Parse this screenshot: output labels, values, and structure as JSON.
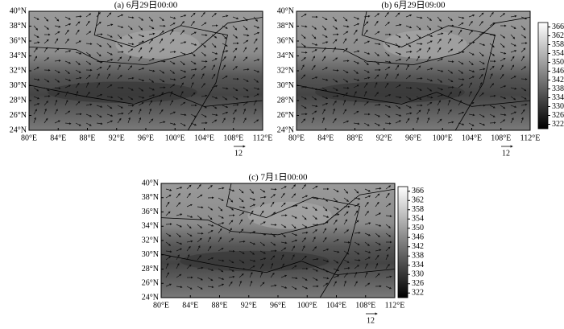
{
  "panels": [
    {
      "title": "(a) 6月29日00:00",
      "xlim": [
        80,
        112
      ],
      "ylim": [
        24,
        40
      ],
      "xticks": [
        {
          "value": 80,
          "label": "80°E"
        },
        {
          "value": 84,
          "label": "84°E"
        },
        {
          "value": 88,
          "label": "88°E"
        },
        {
          "value": 92,
          "label": "92°E"
        },
        {
          "value": 96,
          "label": "96°E"
        },
        {
          "value": 100,
          "label": "100°E"
        },
        {
          "value": 104,
          "label": "104°E"
        },
        {
          "value": 108,
          "label": "108°E"
        },
        {
          "value": 112,
          "label": "112°E"
        }
      ],
      "yticks": [
        {
          "value": 24,
          "label": "24°N"
        },
        {
          "value": 26,
          "label": "26°N"
        },
        {
          "value": 28,
          "label": "28°N"
        },
        {
          "value": 30,
          "label": "30°N"
        },
        {
          "value": 32,
          "label": "32°N"
        },
        {
          "value": 34,
          "label": "34°N"
        },
        {
          "value": 36,
          "label": "36°N"
        },
        {
          "value": 38,
          "label": "38°N"
        },
        {
          "value": 40,
          "label": "40°N"
        }
      ],
      "reference_vector": 12
    },
    {
      "title": "(b) 6月29日09:00",
      "xlim": [
        80,
        112
      ],
      "ylim": [
        24,
        40
      ],
      "xticks": [
        {
          "value": 80,
          "label": "80°E"
        },
        {
          "value": 84,
          "label": "84°E"
        },
        {
          "value": 88,
          "label": "88°E"
        },
        {
          "value": 92,
          "label": "92°E"
        },
        {
          "value": 96,
          "label": "96°E"
        },
        {
          "value": 100,
          "label": "100°E"
        },
        {
          "value": 104,
          "label": "104°E"
        },
        {
          "value": 108,
          "label": "108°E"
        },
        {
          "value": 112,
          "label": "112°E"
        }
      ],
      "yticks": [
        {
          "value": 24,
          "label": "24°N"
        },
        {
          "value": 26,
          "label": "26°N"
        },
        {
          "value": 28,
          "label": "28°N"
        },
        {
          "value": 30,
          "label": "30°N"
        },
        {
          "value": 32,
          "label": "32°N"
        },
        {
          "value": 34,
          "label": "34°N"
        },
        {
          "value": 36,
          "label": "36°N"
        },
        {
          "value": 38,
          "label": "38°N"
        },
        {
          "value": 40,
          "label": "40°N"
        }
      ],
      "reference_vector": 12,
      "colorbar": {
        "lim": [
          320,
          368
        ],
        "ticks": [
          322,
          326,
          330,
          334,
          338,
          342,
          346,
          350,
          354,
          358,
          362,
          366
        ]
      }
    },
    {
      "title": "(c) 7月1日00:00",
      "xlim": [
        80,
        112
      ],
      "ylim": [
        24,
        40
      ],
      "xticks": [
        {
          "value": 80,
          "label": "80°E"
        },
        {
          "value": 84,
          "label": "84°E"
        },
        {
          "value": 88,
          "label": "88°E"
        },
        {
          "value": 92,
          "label": "92°E"
        },
        {
          "value": 96,
          "label": "96°E"
        },
        {
          "value": 100,
          "label": "100°E"
        },
        {
          "value": 104,
          "label": "104°E"
        },
        {
          "value": 108,
          "label": "108°E"
        },
        {
          "value": 112,
          "label": "112°E"
        }
      ],
      "yticks": [
        {
          "value": 24,
          "label": "24°N"
        },
        {
          "value": 26,
          "label": "26°N"
        },
        {
          "value": 28,
          "label": "28°N"
        },
        {
          "value": 30,
          "label": "30°N"
        },
        {
          "value": 32,
          "label": "32°N"
        },
        {
          "value": 34,
          "label": "34°N"
        },
        {
          "value": 36,
          "label": "36°N"
        },
        {
          "value": 38,
          "label": "38°N"
        },
        {
          "value": 40,
          "label": "40°N"
        }
      ],
      "reference_vector": 12,
      "colorbar": {
        "lim": [
          320,
          368
        ],
        "ticks": [
          322,
          326,
          330,
          334,
          338,
          342,
          346,
          350,
          354,
          358,
          362,
          366
        ]
      }
    }
  ]
}
